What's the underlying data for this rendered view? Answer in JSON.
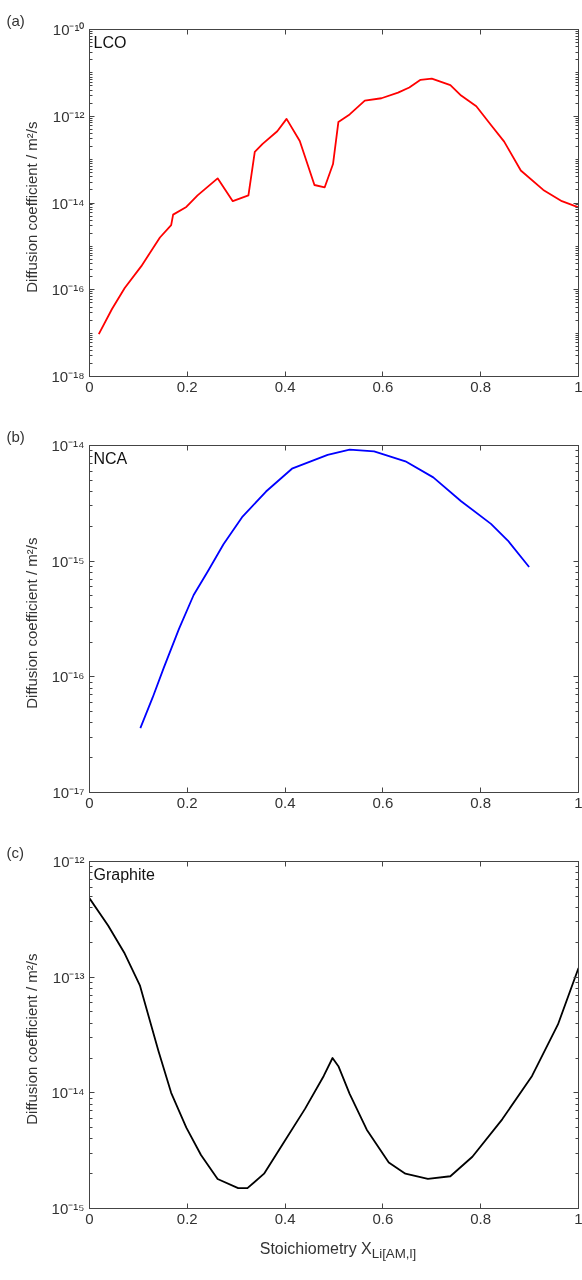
{
  "chart_data": [
    {
      "type": "line",
      "title": "(a)",
      "ylabel": "Diffusion coefficient  /  m²/s",
      "annotations": [
        "LCO"
      ],
      "log": "y",
      "xlim": [
        0,
        1
      ],
      "ylim": [
        1e-18,
        1e-10
      ],
      "xticks": [
        0,
        0.2,
        0.4,
        0.6,
        0.8,
        1
      ],
      "yticks": [
        {
          "value": 1e-18,
          "label": "10⁻¹⁸"
        },
        {
          "value": 1e-16,
          "label": "10⁻¹⁶"
        },
        {
          "value": 1e-14,
          "label": "10⁻¹⁴"
        },
        {
          "value": 1e-12,
          "label": "10⁻¹²"
        },
        {
          "value": 1e-10,
          "label": "10⁻¹⁰"
        }
      ],
      "x": [
        0.019,
        0.046,
        0.072,
        0.106,
        0.144,
        0.167,
        0.171,
        0.198,
        0.221,
        0.262,
        0.293,
        0.325,
        0.338,
        0.354,
        0.384,
        0.403,
        0.43,
        0.46,
        0.481,
        0.498,
        0.509,
        0.532,
        0.563,
        0.597,
        0.631,
        0.654,
        0.677,
        0.7,
        0.738,
        0.76,
        0.791,
        0.821,
        0.848,
        0.882,
        0.928,
        0.966,
        1.0
      ],
      "series": [
        {
          "color": "#ff0000",
          "values": [
            9.5e-18,
            3.6e-17,
            1.1e-16,
            3.5e-16,
            1.6e-15,
            3.1e-15,
            5.4e-15,
            8.1e-15,
            1.5e-14,
            3.7e-14,
            1.1e-14,
            1.5e-14,
            1.5e-13,
            2.3e-13,
            4.5e-13,
            8.7e-13,
            2.7e-13,
            2.6e-14,
            2.3e-14,
            7.9e-14,
            7.4e-13,
            1.1e-12,
            2.3e-12,
            2.6e-12,
            3.5e-12,
            4.6e-12,
            6.9e-12,
            7.4e-12,
            5.2e-12,
            3e-12,
            1.7e-12,
            6.3e-13,
            2.6e-13,
            5.6e-14,
            2e-14,
            1.1e-14,
            7.9e-15
          ]
        }
      ]
    },
    {
      "type": "line",
      "title": "(b)",
      "ylabel": "Diffusion coefficient  /  m²/s",
      "annotations": [
        "NCA"
      ],
      "log": "y",
      "xlim": [
        0,
        1
      ],
      "ylim": [
        1e-17,
        1e-14
      ],
      "xticks": [
        0,
        0.2,
        0.4,
        0.6,
        0.8,
        1
      ],
      "yticks": [
        {
          "value": 1e-17,
          "label": "10⁻¹⁷"
        },
        {
          "value": 1e-16,
          "label": "10⁻¹⁶"
        },
        {
          "value": 1e-15,
          "label": "10⁻¹⁵"
        },
        {
          "value": 1e-14,
          "label": "10⁻¹⁴"
        }
      ],
      "x": [
        0.104,
        0.129,
        0.152,
        0.183,
        0.213,
        0.243,
        0.274,
        0.312,
        0.361,
        0.414,
        0.487,
        0.532,
        0.582,
        0.646,
        0.703,
        0.76,
        0.821,
        0.856,
        0.899
      ],
      "series": [
        {
          "color": "#0000ff",
          "values": [
            3.6e-17,
            6.6e-17,
            1.2e-16,
            2.6e-16,
            5.1e-16,
            8.3e-16,
            1.4e-15,
            2.4e-15,
            4e-15,
            6.3e-15,
            8.3e-15,
            9.2e-15,
            8.9e-15,
            7.3e-15,
            5.3e-15,
            3.3e-15,
            2.1e-15,
            1.5e-15,
            8.9e-16
          ]
        }
      ]
    },
    {
      "type": "line",
      "title": "(c)",
      "ylabel": "Diffusion coefficient  /  m²/s",
      "xlabel": "Stoichiometry X$_{Li[AM,l]}$",
      "annotations": [
        "Graphite"
      ],
      "log": "y",
      "xlim": [
        0,
        1
      ],
      "ylim": [
        1e-15,
        1e-12
      ],
      "xticks": [
        0,
        0.2,
        0.4,
        0.6,
        0.8,
        1
      ],
      "yticks": [
        {
          "value": 1e-15,
          "label": "10⁻¹⁵"
        },
        {
          "value": 1e-14,
          "label": "10⁻¹⁴"
        },
        {
          "value": 1e-13,
          "label": "10⁻¹³"
        },
        {
          "value": 1e-12,
          "label": "10⁻¹²"
        }
      ],
      "x": [
        0,
        0.038,
        0.072,
        0.103,
        0.141,
        0.167,
        0.198,
        0.228,
        0.262,
        0.304,
        0.323,
        0.357,
        0.395,
        0.441,
        0.479,
        0.497,
        0.509,
        0.532,
        0.567,
        0.612,
        0.646,
        0.692,
        0.738,
        0.783,
        0.844,
        0.905,
        0.958,
        1.0
      ],
      "series": [
        {
          "color": "#000000",
          "values": [
            4.8e-13,
            2.8e-13,
            1.6e-13,
            8.5e-14,
            2.3e-14,
            1e-14,
            5e-15,
            2.9e-15,
            1.8e-15,
            1.5e-15,
            1.5e-15,
            2e-15,
            3.6e-15,
            7.3e-15,
            1.4e-14,
            2e-14,
            1.7e-14,
            9.8e-15,
            4.8e-15,
            2.5e-15,
            2e-15,
            1.8e-15,
            1.9e-15,
            2.8e-15,
            5.9e-15,
            1.4e-14,
            3.9e-14,
            1.2e-13
          ]
        }
      ]
    }
  ]
}
